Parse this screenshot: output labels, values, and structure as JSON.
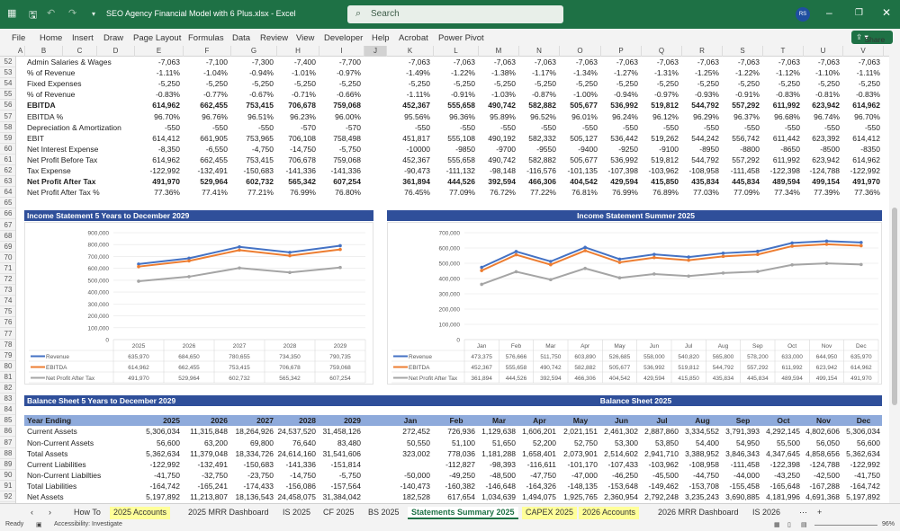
{
  "window": {
    "title": "SEO Agency Financial Model with 6 Plus.xlsx  -  Excel",
    "search_placeholder": "Search",
    "avatar": "RS",
    "icons": [
      "excel-logo-icon",
      "save-icon",
      "undo-icon",
      "redo-icon",
      "customize-icon",
      "search-icon",
      "minimize-icon",
      "restore-icon",
      "close-icon"
    ]
  },
  "menu": {
    "items": [
      "File",
      "Home",
      "Insert",
      "Draw",
      "Page Layout",
      "Formulas",
      "Data",
      "Review",
      "View",
      "Developer",
      "Help",
      "Acrobat",
      "Power Pivot"
    ],
    "share": "Share"
  },
  "columns": [
    "A",
    "B",
    "C",
    "D",
    "E",
    "F",
    "G",
    "H",
    "I",
    "J",
    "K",
    "L",
    "M",
    "N",
    "O",
    "P",
    "Q",
    "R",
    "S",
    "T",
    "U",
    "V"
  ],
  "income_rows": [
    {
      "row": 52,
      "label": "Admin Salaries & Wages",
      "bold": false,
      "years": [
        "-7,063",
        "-7,100",
        "-7,300",
        "-7,400",
        "-7,700"
      ],
      "months": [
        "-7,063",
        "-7,063",
        "-7,063",
        "-7,063",
        "-7,063",
        "-7,063",
        "-7,063",
        "-7,063",
        "-7,063",
        "-7,063",
        "-7,063",
        "-7,063"
      ]
    },
    {
      "row": 53,
      "label": "% of Revenue",
      "bold": false,
      "years": [
        "-1.11%",
        "-1.04%",
        "-0.94%",
        "-1.01%",
        "-0.97%"
      ],
      "months": [
        "-1.49%",
        "-1.22%",
        "-1.38%",
        "-1.17%",
        "-1.34%",
        "-1.27%",
        "-1.31%",
        "-1.25%",
        "-1.22%",
        "-1.12%",
        "-1.10%",
        "-1.11%"
      ]
    },
    {
      "row": 54,
      "label": "Fixed Expenses",
      "bold": false,
      "years": [
        "-5,250",
        "-5,250",
        "-5,250",
        "-5,250",
        "-5,250"
      ],
      "months": [
        "-5,250",
        "-5,250",
        "-5,250",
        "-5,250",
        "-5,250",
        "-5,250",
        "-5,250",
        "-5,250",
        "-5,250",
        "-5,250",
        "-5,250",
        "-5,250"
      ]
    },
    {
      "row": 55,
      "label": "% of Revenue",
      "bold": false,
      "years": [
        "-0.83%",
        "-0.77%",
        "-0.67%",
        "-0.71%",
        "-0.66%"
      ],
      "months": [
        "-1.11%",
        "-0.91%",
        "-1.03%",
        "-0.87%",
        "-1.00%",
        "-0.94%",
        "-0.97%",
        "-0.93%",
        "-0.91%",
        "-0.83%",
        "-0.81%",
        "-0.83%"
      ]
    },
    {
      "row": 56,
      "label": "EBITDA",
      "bold": true,
      "years": [
        "614,962",
        "662,455",
        "753,415",
        "706,678",
        "759,068"
      ],
      "months": [
        "452,367",
        "555,658",
        "490,742",
        "582,882",
        "505,677",
        "536,992",
        "519,812",
        "544,792",
        "557,292",
        "611,992",
        "623,942",
        "614,962"
      ]
    },
    {
      "row": 57,
      "label": "EBITDA %",
      "bold": false,
      "years": [
        "96.70%",
        "96.76%",
        "96.51%",
        "96.23%",
        "96.00%"
      ],
      "months": [
        "95.56%",
        "96.36%",
        "95.89%",
        "96.52%",
        "96.01%",
        "96.24%",
        "96.12%",
        "96.29%",
        "96.37%",
        "96.68%",
        "96.74%",
        "96.70%"
      ]
    },
    {
      "row": 58,
      "label": "Depreciation & Amortization",
      "bold": false,
      "years": [
        "-550",
        "-550",
        "-550",
        "-570",
        "-570"
      ],
      "months": [
        "-550",
        "-550",
        "-550",
        "-550",
        "-550",
        "-550",
        "-550",
        "-550",
        "-550",
        "-550",
        "-550",
        "-550"
      ]
    },
    {
      "row": 59,
      "label": "EBIT",
      "bold": false,
      "years": [
        "614,412",
        "661,905",
        "753,965",
        "706,108",
        "758,498"
      ],
      "months": [
        "451,817",
        "555,108",
        "490,192",
        "582,332",
        "505,127",
        "536,442",
        "519,262",
        "544,242",
        "556,742",
        "611,442",
        "623,392",
        "614,412"
      ]
    },
    {
      "row": 60,
      "label": "Net Interest Expense",
      "bold": false,
      "years": [
        "-8,350",
        "-6,550",
        "-4,750",
        "-14,750",
        "-5,750"
      ],
      "months": [
        "-10000",
        "-9850",
        "-9700",
        "-9550",
        "-9400",
        "-9250",
        "-9100",
        "-8950",
        "-8800",
        "-8650",
        "-8500",
        "-8350"
      ]
    },
    {
      "row": 61,
      "label": "Net Profit Before Tax",
      "bold": false,
      "years": [
        "614,962",
        "662,455",
        "753,415",
        "706,678",
        "759,068"
      ],
      "months": [
        "452,367",
        "555,658",
        "490,742",
        "582,882",
        "505,677",
        "536,992",
        "519,812",
        "544,792",
        "557,292",
        "611,992",
        "623,942",
        "614,962"
      ]
    },
    {
      "row": 62,
      "label": "Tax Expense",
      "bold": false,
      "years": [
        "-122,992",
        "-132,491",
        "-150,683",
        "-141,336",
        "-141,336"
      ],
      "months": [
        "-90,473",
        "-111,132",
        "-98,148",
        "-116,576",
        "-101,135",
        "-107,398",
        "-103,962",
        "-108,958",
        "-111,458",
        "-122,398",
        "-124,788",
        "-122,992"
      ]
    },
    {
      "row": 63,
      "label": "Net Profit After Tax",
      "bold": true,
      "years": [
        "491,970",
        "529,964",
        "602,732",
        "565,342",
        "607,254"
      ],
      "months": [
        "361,894",
        "444,526",
        "392,594",
        "466,306",
        "404,542",
        "429,594",
        "415,850",
        "435,834",
        "445,834",
        "489,594",
        "499,154",
        "491,970"
      ]
    },
    {
      "row": 64,
      "label": "Net Profit After Tax %",
      "bold": false,
      "years": [
        "77.36%",
        "77.41%",
        "77.21%",
        "76.99%",
        "76.80%"
      ],
      "months": [
        "76.45%",
        "77.09%",
        "76.72%",
        "77.22%",
        "76.81%",
        "76.99%",
        "76.89%",
        "77.03%",
        "77.09%",
        "77.34%",
        "77.39%",
        "77.36%"
      ]
    }
  ],
  "chart_data": [
    {
      "type": "line",
      "title": "Income Statement 5 Years to December 2029",
      "categories": [
        "2025",
        "2026",
        "2027",
        "2028",
        "2029"
      ],
      "ylim": [
        0,
        900000
      ],
      "yticks": [
        "0",
        "100,000",
        "200,000",
        "300,000",
        "400,000",
        "500,000",
        "600,000",
        "700,000",
        "800,000",
        "900,000"
      ],
      "grid": true,
      "legend": "data-table",
      "series": [
        {
          "name": "Revenue",
          "color": "#4472c4",
          "values": [
            635970,
            684650,
            780655,
            734350,
            790735
          ],
          "labels": [
            "635,970",
            "684,650",
            "780,655",
            "734,350",
            "790,735"
          ]
        },
        {
          "name": "EBITDA",
          "color": "#ed7d31",
          "values": [
            614962,
            662455,
            753415,
            706678,
            759068
          ],
          "labels": [
            "614,962",
            "662,455",
            "753,415",
            "706,678",
            "759,068"
          ]
        },
        {
          "name": "Net Profit After Tax",
          "color": "#a5a5a5",
          "values": [
            491970,
            529964,
            602732,
            565342,
            607254
          ],
          "labels": [
            "491,970",
            "529,964",
            "602,732",
            "565,342",
            "607,254"
          ]
        }
      ]
    },
    {
      "type": "line",
      "title": "Income Statement Summer 2025",
      "categories": [
        "Jan",
        "Feb",
        "Mar",
        "Apr",
        "May",
        "Jun",
        "Jul",
        "Aug",
        "Sep",
        "Oct",
        "Nov",
        "Dec"
      ],
      "ylim": [
        0,
        700000
      ],
      "yticks": [
        "0",
        "100,000",
        "200,000",
        "300,000",
        "400,000",
        "500,000",
        "600,000",
        "700,000"
      ],
      "grid": true,
      "legend": "data-table",
      "series": [
        {
          "name": "Revenue",
          "color": "#4472c4",
          "values": [
            473375,
            576666,
            511750,
            603890,
            526685,
            558000,
            540820,
            565800,
            578200,
            633000,
            644950,
            635970
          ],
          "labels": [
            "473,375",
            "576,666",
            "511,750",
            "603,890",
            "526,685",
            "558,000",
            "540,820",
            "565,800",
            "578,200",
            "633,000",
            "644,950",
            "635,970"
          ]
        },
        {
          "name": "EBITDA",
          "color": "#ed7d31",
          "values": [
            452367,
            555658,
            490742,
            582882,
            505677,
            536992,
            519812,
            544792,
            557292,
            611992,
            623942,
            614962
          ],
          "labels": [
            "452,367",
            "555,658",
            "490,742",
            "582,882",
            "505,677",
            "536,992",
            "519,812",
            "544,792",
            "557,292",
            "611,992",
            "623,942",
            "614,962"
          ]
        },
        {
          "name": "Net Profit After Tax",
          "color": "#a5a5a5",
          "values": [
            361894,
            444526,
            392594,
            466306,
            404542,
            429594,
            415850,
            435834,
            445834,
            489594,
            499154,
            491970
          ],
          "labels": [
            "361,894",
            "444,526",
            "392,594",
            "466,306",
            "404,542",
            "429,594",
            "415,850",
            "435,834",
            "445,834",
            "489,594",
            "499,154",
            "491,970"
          ]
        }
      ]
    }
  ],
  "balance": {
    "title_left": "Balance Sheet 5 Years to December 2029",
    "title_right": "Balance Sheet 2025",
    "header_label": "Year Ending",
    "years": [
      "2025",
      "2026",
      "2027",
      "2028",
      "2029"
    ],
    "months": [
      "Jan",
      "Feb",
      "Mar",
      "Apr",
      "May",
      "Jun",
      "Jul",
      "Aug",
      "Sep",
      "Oct",
      "Nov",
      "Dec"
    ],
    "rows": [
      {
        "label": "Current Assets",
        "years": [
          "5,306,034",
          "11,315,848",
          "18,264,926",
          "24,537,520",
          "31,458,126"
        ],
        "months": [
          "272,452",
          "726,936",
          "1,129,638",
          "1,606,201",
          "2,021,151",
          "2,461,302",
          "2,887,860",
          "3,334,552",
          "3,791,393",
          "4,292,145",
          "4,802,606",
          "5,306,034"
        ]
      },
      {
        "label": "Non-Current Assets",
        "years": [
          "56,600",
          "63,200",
          "69,800",
          "76,640",
          "83,480"
        ],
        "months": [
          "50,550",
          "51,100",
          "51,650",
          "52,200",
          "52,750",
          "53,300",
          "53,850",
          "54,400",
          "54,950",
          "55,500",
          "56,050",
          "56,600"
        ]
      },
      {
        "label": "Total Assets",
        "years": [
          "5,362,634",
          "11,379,048",
          "18,334,726",
          "24,614,160",
          "31,541,606"
        ],
        "months": [
          "323,002",
          "778,036",
          "1,181,288",
          "1,658,401",
          "2,073,901",
          "2,514,602",
          "2,941,710",
          "3,388,952",
          "3,846,343",
          "4,347,645",
          "4,858,656",
          "5,362,634"
        ]
      },
      {
        "label": "Current Liabilities",
        "years": [
          "-122,992",
          "-132,491",
          "-150,683",
          "-141,336",
          "-151,814"
        ],
        "months": [
          "",
          "-112,827",
          "-98,393",
          "-116,611",
          "-101,170",
          "-107,433",
          "-103,962",
          "-108,958",
          "-111,458",
          "-122,398",
          "-124,788",
          "-122,992"
        ]
      },
      {
        "label": "Non-Current Liabilties",
        "years": [
          "-41,750",
          "-32,750",
          "-23,750",
          "-14,750",
          "-5,750"
        ],
        "months": [
          "-50,000",
          "-49,250",
          "-48,500",
          "-47,750",
          "-47,000",
          "-46,250",
          "-45,500",
          "-44,750",
          "-44,000",
          "-43,250",
          "-42,500",
          "-41,750"
        ]
      },
      {
        "label": "Total Liabilities",
        "years": [
          "-164,742",
          "-165,241",
          "-174,433",
          "-156,086",
          "-157,564"
        ],
        "months": [
          "-140,473",
          "-160,382",
          "-146,648",
          "-164,326",
          "-148,135",
          "-153,648",
          "-149,462",
          "-153,708",
          "-155,458",
          "-165,648",
          "-167,288",
          "-164,742"
        ]
      },
      {
        "label": "Net Assets",
        "years": [
          "5,197,892",
          "11,213,807",
          "18,136,543",
          "24,458,075",
          "31,384,042"
        ],
        "months": [
          "182,528",
          "617,654",
          "1,034,639",
          "1,494,075",
          "1,925,765",
          "2,360,954",
          "2,792,248",
          "3,235,243",
          "3,690,885",
          "4,181,996",
          "4,691,368",
          "5,197,892"
        ]
      }
    ]
  },
  "tabs": [
    {
      "label": "How To",
      "style": ""
    },
    {
      "label": "2025 Accounts",
      "style": "y"
    },
    {
      "label": "2025 MRR Dashboard",
      "style": ""
    },
    {
      "label": "IS 2025",
      "style": ""
    },
    {
      "label": "CF 2025",
      "style": ""
    },
    {
      "label": "BS 2025",
      "style": ""
    },
    {
      "label": "Statements Summary 2025",
      "style": "act"
    },
    {
      "label": "CAPEX 2025",
      "style": "y"
    },
    {
      "label": "2026 Accounts",
      "style": "y"
    },
    {
      "label": "2026 MRR Dashboard",
      "style": ""
    },
    {
      "label": "IS 2026",
      "style": ""
    }
  ],
  "status": {
    "ready": "Ready",
    "accessibility": "Accessibility: Investigate",
    "zoom": "96%"
  }
}
